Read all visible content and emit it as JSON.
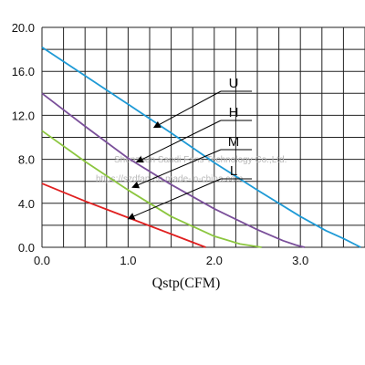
{
  "chart_data": {
    "type": "line",
    "xlabel": "Qstp(CFM)",
    "ylabel": "",
    "xlim": [
      0,
      3.75
    ],
    "ylim": [
      0,
      20
    ],
    "x_ticks": [
      "0.0",
      "1.0",
      "2.0",
      "3.0"
    ],
    "y_ticks": [
      "0.0",
      "4.0",
      "8.0",
      "12.0",
      "16.0",
      "20.0"
    ],
    "grid": true,
    "series": [
      {
        "name": "U",
        "color": "#1e9ad6",
        "x": [
          0,
          0.5,
          1.0,
          1.5,
          2.0,
          2.5,
          3.0,
          3.3,
          3.5,
          3.7
        ],
        "y": [
          18.2,
          15.6,
          13.0,
          10.4,
          7.7,
          5.2,
          2.8,
          1.5,
          0.8,
          0.0
        ]
      },
      {
        "name": "H",
        "color": "#7a4f9a",
        "x": [
          0,
          0.5,
          1.0,
          1.5,
          2.0,
          2.5,
          2.8,
          2.95,
          3.05
        ],
        "y": [
          14.0,
          11.0,
          8.1,
          5.7,
          3.5,
          1.6,
          0.6,
          0.2,
          0.0
        ]
      },
      {
        "name": "M",
        "color": "#8cc63f",
        "x": [
          0,
          0.5,
          1.0,
          1.5,
          2.0,
          2.3,
          2.55
        ],
        "y": [
          10.6,
          7.8,
          5.2,
          2.8,
          1.0,
          0.3,
          0.0
        ]
      },
      {
        "name": "L",
        "color": "#e02020",
        "x": [
          0,
          0.5,
          1.0,
          1.5,
          1.9
        ],
        "y": [
          5.8,
          4.2,
          2.7,
          1.2,
          0.0
        ]
      }
    ],
    "labels_on_curves": [
      "U",
      "H",
      "M",
      "L"
    ]
  },
  "watermark": {
    "line1": "Shenzhen Sandi Fans Technology Co.,Ltd.",
    "line2": "https://szdfan.en.made-in-china.com"
  }
}
